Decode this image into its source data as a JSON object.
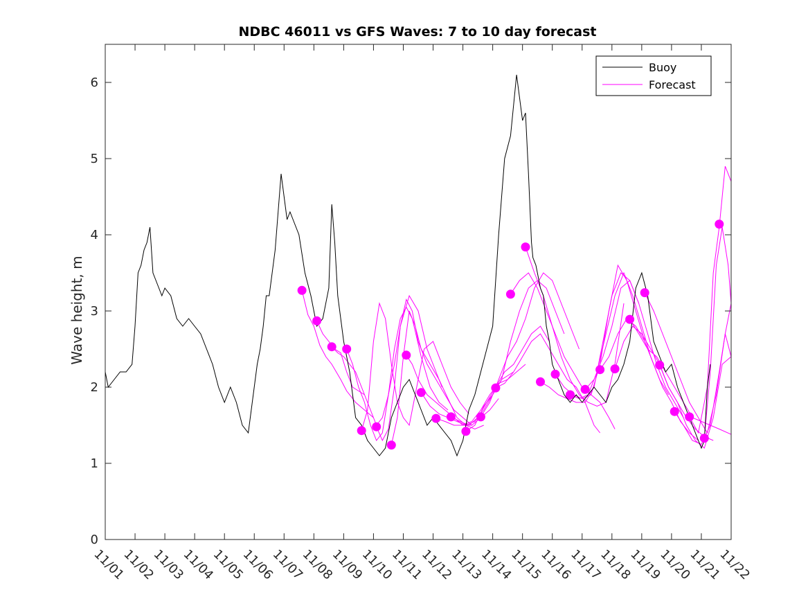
{
  "chart_data": {
    "type": "line",
    "title": "NDBC 46011 vs GFS Waves: 7 to 10 day forecast",
    "xlabel": "",
    "ylabel": "Wave height, m",
    "xlim": [
      0,
      21
    ],
    "ylim": [
      0,
      6.5
    ],
    "grid": false,
    "legend_position": "top-right",
    "x_tick_labels": [
      "11/01",
      "11/02",
      "11/03",
      "11/04",
      "11/05",
      "11/06",
      "11/07",
      "11/08",
      "11/09",
      "11/10",
      "11/11",
      "11/12",
      "11/13",
      "11/14",
      "11/15",
      "11/16",
      "11/17",
      "11/18",
      "11/19",
      "11/20",
      "11/21",
      "11/22"
    ],
    "y_ticks": [
      0,
      1,
      2,
      3,
      4,
      5,
      6
    ],
    "colors": {
      "buoy": "#000000",
      "forecast": "#ff00ff"
    },
    "legend": [
      {
        "label": "Buoy",
        "color": "#000000"
      },
      {
        "label": "Forecast",
        "color": "#ff00ff"
      }
    ],
    "buoy": {
      "name": "Buoy",
      "x": [
        0,
        0.1,
        0.3,
        0.5,
        0.7,
        0.9,
        1.0,
        1.1,
        1.2,
        1.3,
        1.4,
        1.5,
        1.6,
        1.7,
        1.8,
        1.9,
        2.0,
        2.2,
        2.4,
        2.6,
        2.8,
        3.0,
        3.2,
        3.4,
        3.6,
        3.8,
        4.0,
        4.2,
        4.4,
        4.6,
        4.8,
        5.0,
        5.1,
        5.2,
        5.3,
        5.4,
        5.5,
        5.7,
        5.9,
        6.0,
        6.1,
        6.2,
        6.3,
        6.5,
        6.7,
        6.9,
        7.1,
        7.3,
        7.5,
        7.6,
        7.7,
        7.8,
        8.0,
        8.1,
        8.2,
        8.3,
        8.4,
        8.6,
        8.8,
        9.0,
        9.2,
        9.4,
        9.6,
        9.8,
        10.0,
        10.2,
        10.5,
        10.8,
        11.0,
        11.2,
        11.4,
        11.6,
        11.8,
        12.0,
        12.2,
        12.4,
        12.6,
        12.8,
        13.0,
        13.2,
        13.4,
        13.6,
        13.8,
        14.0,
        14.1,
        14.2,
        14.3,
        14.35,
        14.45,
        14.5,
        14.6,
        14.7,
        14.8,
        14.9,
        15.0,
        15.2,
        15.4,
        15.6,
        15.8,
        16.0,
        16.2,
        16.4,
        16.6,
        16.8,
        17.0,
        17.2,
        17.4,
        17.6,
        17.8,
        18.0,
        18.2,
        18.4,
        18.6,
        18.8,
        19.0,
        19.2,
        19.4,
        19.6,
        19.8,
        19.9,
        20.0,
        20.1,
        20.2,
        20.3
      ],
      "y": [
        2.2,
        2.0,
        2.1,
        2.2,
        2.2,
        2.3,
        2.8,
        3.5,
        3.6,
        3.8,
        3.9,
        4.1,
        3.5,
        3.4,
        3.3,
        3.2,
        3.3,
        3.2,
        2.9,
        2.8,
        2.9,
        2.8,
        2.7,
        2.5,
        2.3,
        2.0,
        1.8,
        2.0,
        1.8,
        1.5,
        1.4,
        2.0,
        2.3,
        2.5,
        2.8,
        3.2,
        3.2,
        3.8,
        4.8,
        4.5,
        4.2,
        4.3,
        4.2,
        4.0,
        3.5,
        3.2,
        2.8,
        2.9,
        3.3,
        4.4,
        3.9,
        3.2,
        2.6,
        2.4,
        2.2,
        1.9,
        1.6,
        1.5,
        1.3,
        1.2,
        1.1,
        1.2,
        1.6,
        1.8,
        2.0,
        2.1,
        1.8,
        1.5,
        1.6,
        1.5,
        1.4,
        1.3,
        1.1,
        1.3,
        1.7,
        1.9,
        2.2,
        2.5,
        2.8,
        4.0,
        5.0,
        5.3,
        6.1,
        5.5,
        5.6,
        4.8,
        3.9,
        3.7,
        3.6,
        3.5,
        3.3,
        3.2,
        2.8,
        2.6,
        2.3,
        2.1,
        1.9,
        1.8,
        1.9,
        1.8,
        1.9,
        2.0,
        1.9,
        1.8,
        2.0,
        2.1,
        2.3,
        2.6,
        3.3,
        3.5,
        3.2,
        2.6,
        2.4,
        2.2,
        2.3,
        2.0,
        1.8,
        1.6,
        1.4,
        1.3,
        1.2,
        1.3,
        2.0,
        2.3
      ]
    },
    "forecast_series": [
      {
        "name": "Forecast",
        "x": [
          6.6,
          6.8,
          7.0,
          7.2,
          7.4,
          7.6,
          7.9,
          8.1,
          8.4,
          8.7,
          9.0
        ],
        "y": [
          3.27,
          2.95,
          2.8,
          2.55,
          2.4,
          2.3,
          2.1,
          1.95,
          1.8,
          1.7,
          1.6
        ]
      },
      {
        "name": "Forecast",
        "x": [
          7.1,
          7.3,
          7.5,
          7.7,
          7.9,
          8.1,
          8.3,
          8.5,
          8.7
        ],
        "y": [
          2.87,
          2.7,
          2.6,
          2.5,
          2.45,
          2.2,
          2.0,
          1.95,
          1.9
        ]
      },
      {
        "name": "Forecast",
        "x": [
          7.6,
          7.8,
          8.0,
          8.2,
          8.4,
          8.6,
          8.8,
          9.0,
          9.1,
          9.3,
          9.5,
          9.7,
          9.9,
          10.2,
          10.5,
          10.8,
          11.1,
          11.3
        ],
        "y": [
          2.53,
          2.45,
          2.4,
          2.3,
          2.2,
          2.0,
          1.8,
          1.6,
          1.5,
          1.6,
          1.9,
          2.3,
          2.8,
          3.2,
          3.0,
          2.5,
          2.2,
          2.0
        ]
      },
      {
        "name": "Forecast",
        "x": [
          8.1,
          8.3,
          8.5,
          8.7,
          8.9,
          9.1,
          9.3,
          9.5,
          9.7,
          9.9,
          10.1,
          10.3,
          10.6,
          10.9,
          11.2,
          11.5
        ],
        "y": [
          2.5,
          2.3,
          2.0,
          1.8,
          1.5,
          1.3,
          1.4,
          1.9,
          2.5,
          2.9,
          3.05,
          2.9,
          2.4,
          2.0,
          1.8,
          1.7
        ]
      },
      {
        "name": "Forecast",
        "x": [
          8.6,
          8.8,
          9.0,
          9.2,
          9.4,
          9.6,
          9.8,
          10.0,
          10.2,
          10.4,
          10.7,
          11.0,
          11.3,
          11.6,
          11.9,
          12.2
        ],
        "y": [
          1.43,
          1.7,
          2.6,
          3.1,
          2.9,
          2.3,
          1.8,
          1.6,
          1.5,
          1.9,
          2.5,
          2.6,
          2.3,
          2.0,
          1.8,
          1.65
        ]
      },
      {
        "name": "Forecast",
        "x": [
          9.1,
          9.3,
          9.5,
          9.7,
          9.9,
          10.1,
          10.3,
          10.5,
          10.8,
          11.1,
          11.4,
          11.7,
          12.0,
          12.3
        ],
        "y": [
          1.48,
          1.3,
          1.45,
          2.0,
          2.8,
          3.15,
          3.0,
          2.6,
          2.3,
          2.1,
          1.9,
          1.7,
          1.6,
          1.5
        ]
      },
      {
        "name": "Forecast",
        "x": [
          9.6,
          9.8,
          10.0,
          10.2,
          10.4,
          10.6,
          10.9,
          11.2,
          11.5,
          11.8,
          12.1,
          12.4,
          12.7
        ],
        "y": [
          1.24,
          1.6,
          2.4,
          3.0,
          2.8,
          2.5,
          2.3,
          2.1,
          1.85,
          1.6,
          1.5,
          1.45,
          1.5
        ]
      },
      {
        "name": "Forecast",
        "x": [
          10.1,
          10.3,
          10.5,
          10.8,
          11.1,
          11.4,
          11.7,
          12.0,
          12.3,
          12.6,
          12.9,
          13.2
        ],
        "y": [
          2.42,
          2.3,
          2.1,
          1.9,
          1.8,
          1.7,
          1.6,
          1.5,
          1.5,
          1.6,
          1.7,
          1.85
        ]
      },
      {
        "name": "Forecast",
        "x": [
          10.6,
          10.9,
          11.2,
          11.5,
          11.8,
          12.1,
          12.4,
          12.7,
          13.0,
          13.3,
          13.7
        ],
        "y": [
          1.93,
          1.75,
          1.65,
          1.6,
          1.55,
          1.5,
          1.55,
          1.7,
          1.9,
          2.1,
          2.2
        ]
      },
      {
        "name": "Forecast",
        "x": [
          11.1,
          11.4,
          11.7,
          12.0,
          12.3,
          12.6,
          12.9,
          13.2,
          13.5,
          13.8,
          14.1
        ],
        "y": [
          1.59,
          1.55,
          1.5,
          1.5,
          1.55,
          1.7,
          1.9,
          2.05,
          2.1,
          2.2,
          2.3
        ]
      },
      {
        "name": "Forecast",
        "x": [
          11.6,
          11.9,
          12.2,
          12.5,
          12.8,
          13.1,
          13.4,
          13.7,
          14.0,
          14.3,
          14.6,
          14.9
        ],
        "y": [
          1.61,
          1.55,
          1.5,
          1.6,
          1.8,
          2.0,
          2.2,
          2.3,
          2.5,
          2.7,
          2.8,
          2.6
        ]
      },
      {
        "name": "Forecast",
        "x": [
          12.1,
          12.4,
          12.7,
          13.0,
          13.3,
          13.6,
          13.9,
          14.2,
          14.5,
          14.8,
          15.1,
          15.4
        ],
        "y": [
          1.42,
          1.5,
          1.75,
          1.9,
          2.1,
          2.6,
          3.0,
          3.3,
          3.4,
          3.3,
          3.0,
          2.7
        ]
      },
      {
        "name": "Forecast",
        "x": [
          12.6,
          12.9,
          13.2,
          13.5,
          13.8,
          14.1,
          14.4,
          14.7,
          15.0,
          15.3,
          15.6,
          15.9
        ],
        "y": [
          1.61,
          1.8,
          2.1,
          2.4,
          2.6,
          2.9,
          3.3,
          3.5,
          3.4,
          3.1,
          2.8,
          2.5
        ]
      },
      {
        "name": "Forecast",
        "x": [
          13.1,
          13.4,
          13.7,
          14.0,
          14.3,
          14.6,
          14.9,
          15.2,
          15.5,
          15.8,
          16.1,
          16.4,
          16.6
        ],
        "y": [
          1.99,
          2.05,
          2.2,
          2.4,
          2.6,
          2.7,
          2.5,
          2.3,
          2.1,
          2.0,
          1.8,
          1.5,
          1.4
        ]
      },
      {
        "name": "Forecast",
        "x": [
          13.6,
          13.9,
          14.2,
          14.5,
          14.8,
          15.1,
          15.4,
          15.7,
          16.0,
          16.3,
          16.6,
          16.9,
          17.1
        ],
        "y": [
          3.22,
          3.4,
          3.5,
          3.3,
          3.0,
          2.7,
          2.4,
          2.2,
          2.0,
          1.9,
          1.8,
          1.6,
          1.45
        ]
      },
      {
        "name": "Forecast",
        "x": [
          14.1,
          14.4,
          14.7,
          15.0,
          15.3,
          15.6,
          15.9,
          16.2,
          16.5,
          16.8,
          17.1,
          17.4
        ],
        "y": [
          3.84,
          3.5,
          3.2,
          2.8,
          2.4,
          2.1,
          1.9,
          1.8,
          1.75,
          1.8,
          2.3,
          3.1
        ]
      },
      {
        "name": "Forecast",
        "x": [
          14.6,
          14.9,
          15.2,
          15.5,
          15.8,
          16.1,
          16.4,
          16.7,
          17.0,
          17.3,
          17.6,
          17.9
        ],
        "y": [
          2.07,
          2.0,
          1.9,
          1.85,
          1.8,
          1.8,
          2.0,
          2.6,
          3.2,
          3.5,
          3.4,
          3.1
        ]
      },
      {
        "name": "Forecast",
        "x": [
          15.1,
          15.4,
          15.7,
          16.0,
          16.3,
          16.6,
          16.9,
          17.2,
          17.5,
          17.8,
          18.1,
          18.4
        ],
        "y": [
          2.17,
          2.0,
          1.9,
          1.85,
          1.9,
          2.3,
          3.0,
          3.6,
          3.4,
          3.0,
          2.6,
          2.3
        ]
      },
      {
        "name": "Forecast",
        "x": [
          15.6,
          15.9,
          16.2,
          16.5,
          16.8,
          17.1,
          17.4,
          17.7,
          18.0,
          18.3,
          18.6,
          18.9
        ],
        "y": [
          1.9,
          1.85,
          1.9,
          2.2,
          2.7,
          3.2,
          3.5,
          3.2,
          2.8,
          2.4,
          2.1,
          1.9
        ]
      },
      {
        "name": "Forecast",
        "x": [
          16.1,
          16.4,
          16.7,
          17.0,
          17.3,
          17.6,
          17.9,
          18.2,
          18.5,
          18.8,
          19.1,
          19.4
        ],
        "y": [
          1.97,
          2.1,
          2.4,
          2.8,
          3.3,
          3.4,
          3.1,
          2.7,
          2.3,
          2.0,
          1.8,
          1.6
        ]
      },
      {
        "name": "Forecast",
        "x": [
          16.6,
          16.9,
          17.2,
          17.5,
          17.8,
          18.1,
          18.4,
          18.7,
          19.0,
          19.3,
          19.6,
          19.9
        ],
        "y": [
          2.23,
          2.4,
          2.7,
          2.9,
          2.8,
          2.6,
          2.3,
          2.0,
          1.8,
          1.55,
          1.4,
          1.3
        ]
      },
      {
        "name": "Forecast",
        "x": [
          17.1,
          17.4,
          17.7,
          18.0,
          18.3,
          18.6,
          18.9,
          19.2,
          19.5,
          19.8,
          20.1,
          20.4
        ],
        "y": [
          2.24,
          2.6,
          2.8,
          2.7,
          2.5,
          2.3,
          2.0,
          1.8,
          1.6,
          1.45,
          1.35,
          1.3
        ]
      },
      {
        "name": "Forecast",
        "x": [
          17.6,
          17.9,
          18.2,
          18.5,
          18.8,
          19.1,
          19.4,
          19.7,
          20.0,
          20.3,
          20.6,
          21.0
        ],
        "y": [
          2.89,
          2.7,
          2.5,
          2.4,
          2.2,
          2.0,
          1.8,
          1.6,
          1.55,
          1.5,
          1.45,
          1.38
        ]
      },
      {
        "name": "Forecast",
        "x": [
          18.1,
          18.4,
          18.7,
          19.0,
          19.3,
          19.6,
          19.9,
          20.2,
          20.5,
          20.8,
          21.0
        ],
        "y": [
          3.24,
          3.0,
          2.7,
          2.4,
          2.1,
          1.8,
          1.6,
          1.4,
          1.9,
          2.7,
          2.4
        ]
      },
      {
        "name": "Forecast",
        "x": [
          18.6,
          18.9,
          19.2,
          19.5,
          19.8,
          20.1,
          20.4,
          20.7,
          21.0
        ],
        "y": [
          2.29,
          2.0,
          1.8,
          1.5,
          1.3,
          1.2,
          1.6,
          2.3,
          2.4
        ]
      },
      {
        "name": "Forecast",
        "x": [
          19.1,
          19.4,
          19.7,
          20.0,
          20.3,
          20.6,
          20.8,
          21.0
        ],
        "y": [
          1.68,
          1.5,
          1.3,
          1.25,
          1.5,
          2.2,
          2.7,
          3.1
        ]
      },
      {
        "name": "Forecast",
        "x": [
          19.6,
          19.9,
          20.2,
          20.4,
          20.6,
          20.8,
          21.0
        ],
        "y": [
          1.61,
          1.4,
          2.0,
          3.5,
          4.1,
          4.9,
          4.7
        ]
      },
      {
        "name": "Forecast",
        "x": [
          20.1,
          20.3,
          20.5,
          20.7,
          20.9,
          21.0
        ],
        "y": [
          1.33,
          2.2,
          3.6,
          4.1,
          3.6,
          3.1
        ]
      },
      {
        "name": "Forecast",
        "x": [
          20.6
        ],
        "y": [
          4.14
        ]
      }
    ]
  }
}
